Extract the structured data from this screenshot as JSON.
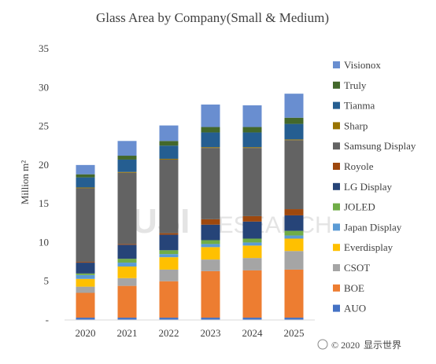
{
  "chart_data": {
    "type": "bar",
    "stacked": true,
    "title": "Glass Area by Company(Small & Medium)",
    "ylabel": "Million m²",
    "xlabel": "",
    "ylim": [
      0,
      35
    ],
    "yticks": [
      "-",
      "5",
      "10",
      "15",
      "20",
      "25",
      "30",
      "35"
    ],
    "categories": [
      "2020",
      "2021",
      "2022",
      "2023",
      "2024",
      "2025"
    ],
    "legend_position": "right",
    "series": [
      {
        "name": "AUO",
        "color": "#4472c4",
        "values": [
          0.3,
          0.3,
          0.3,
          0.3,
          0.3,
          0.3
        ]
      },
      {
        "name": "BOE",
        "color": "#ed7d31",
        "values": [
          3.2,
          4.1,
          4.7,
          6.0,
          6.1,
          6.2
        ]
      },
      {
        "name": "CSOT",
        "color": "#a5a5a5",
        "values": [
          0.8,
          1.0,
          1.5,
          1.5,
          1.6,
          2.4
        ]
      },
      {
        "name": "Everdisplay",
        "color": "#ffc000",
        "values": [
          1.0,
          1.5,
          1.6,
          1.6,
          1.6,
          1.6
        ]
      },
      {
        "name": "Japan Display",
        "color": "#5b9bd5",
        "values": [
          0.5,
          0.5,
          0.4,
          0.4,
          0.4,
          0.4
        ]
      },
      {
        "name": "JOLED",
        "color": "#70ad47",
        "values": [
          0.2,
          0.5,
          0.5,
          0.5,
          0.5,
          0.6
        ]
      },
      {
        "name": "LG Display",
        "color": "#264478",
        "values": [
          1.4,
          1.8,
          2.0,
          2.0,
          2.2,
          2.0
        ]
      },
      {
        "name": "Royole",
        "color": "#9e480e",
        "values": [
          0.1,
          0.1,
          0.2,
          0.7,
          0.7,
          0.8
        ]
      },
      {
        "name": "Samsung Display",
        "color": "#636363",
        "values": [
          9.5,
          9.2,
          9.5,
          9.2,
          8.8,
          8.9
        ]
      },
      {
        "name": "Sharp",
        "color": "#997300",
        "values": [
          0.1,
          0.1,
          0.1,
          0.1,
          0.1,
          0.1
        ]
      },
      {
        "name": "Tianma",
        "color": "#255e91",
        "values": [
          1.3,
          1.6,
          1.7,
          1.9,
          1.9,
          2.0
        ]
      },
      {
        "name": "Truly",
        "color": "#43682b",
        "values": [
          0.4,
          0.5,
          0.6,
          0.7,
          0.7,
          0.8
        ]
      },
      {
        "name": "Visionox",
        "color": "#698ed0",
        "values": [
          1.2,
          1.9,
          2.0,
          2.9,
          2.8,
          3.1
        ]
      }
    ]
  },
  "watermark": {
    "brand": "USI",
    "word": "RESEARCH"
  },
  "footer": {
    "prefix": "© 2020",
    "suffix": "显示世界"
  }
}
